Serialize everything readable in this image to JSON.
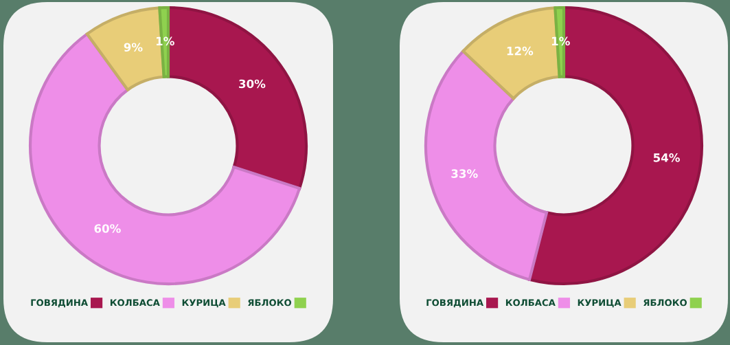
{
  "chart_data": [
    {
      "type": "donut",
      "categories": [
        "ГОВЯДИНА",
        "КОЛБАСА",
        "КУРИЦА",
        "ЯБЛОКО"
      ],
      "values": [
        30,
        60,
        9,
        1
      ],
      "value_labels": [
        "30%",
        "60%",
        "9%",
        "1%"
      ],
      "colors": [
        "#a8174f",
        "#ee8ee8",
        "#e8cd78",
        "#8fd14f"
      ],
      "legend": "bottom"
    },
    {
      "type": "donut",
      "categories": [
        "ГОВЯДИНА",
        "КОЛБАСА",
        "КУРИЦА",
        "ЯБЛОКО"
      ],
      "values": [
        54,
        33,
        12,
        1
      ],
      "value_labels": [
        "54%",
        "33%",
        "12%",
        "1%"
      ],
      "colors": [
        "#a8174f",
        "#ee8ee8",
        "#e8cd78",
        "#8fd14f"
      ],
      "legend": "bottom"
    }
  ]
}
